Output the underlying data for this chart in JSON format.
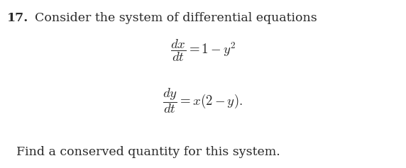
{
  "background_color": "#ffffff",
  "problem_number": "17.",
  "intro_text": "Consider the system of differential equations",
  "eq1": "$\\dfrac{dx}{dt} = 1 - y^2$",
  "eq2": "$\\dfrac{dy}{dt} = x(2 - y).$",
  "footer_text": "Find a conserved quantity for this system.",
  "title_fontsize": 12.5,
  "math_fontsize": 13.5,
  "footer_fontsize": 12.5,
  "text_color": "#2a2a2a"
}
